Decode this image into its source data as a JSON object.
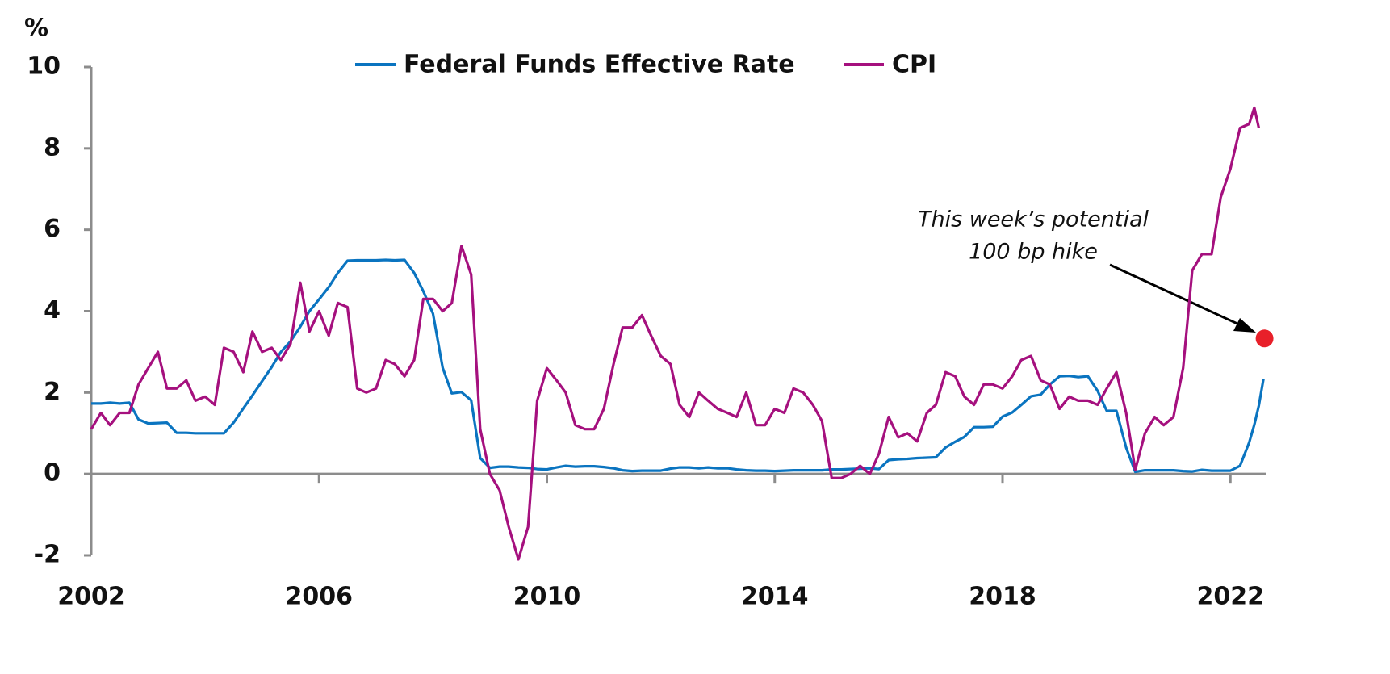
{
  "chart_data": {
    "type": "line",
    "y_label": "%",
    "x": [
      2002,
      2002.17,
      2002.33,
      2002.5,
      2002.67,
      2002.83,
      2003,
      2003.17,
      2003.33,
      2003.5,
      2003.67,
      2003.83,
      2004,
      2004.17,
      2004.33,
      2004.5,
      2004.67,
      2004.83,
      2005,
      2005.17,
      2005.33,
      2005.5,
      2005.67,
      2005.83,
      2006,
      2006.17,
      2006.33,
      2006.5,
      2006.67,
      2006.83,
      2007,
      2007.17,
      2007.33,
      2007.5,
      2007.67,
      2007.83,
      2008,
      2008.17,
      2008.33,
      2008.5,
      2008.67,
      2008.83,
      2009,
      2009.17,
      2009.33,
      2009.5,
      2009.67,
      2009.83,
      2010,
      2010.17,
      2010.33,
      2010.5,
      2010.67,
      2010.83,
      2011,
      2011.17,
      2011.33,
      2011.5,
      2011.67,
      2011.83,
      2012,
      2012.17,
      2012.33,
      2012.5,
      2012.67,
      2012.83,
      2013,
      2013.17,
      2013.33,
      2013.5,
      2013.67,
      2013.83,
      2014,
      2014.17,
      2014.33,
      2014.5,
      2014.67,
      2014.83,
      2015,
      2015.17,
      2015.33,
      2015.5,
      2015.67,
      2015.83,
      2016,
      2016.17,
      2016.33,
      2016.5,
      2016.67,
      2016.83,
      2017,
      2017.17,
      2017.33,
      2017.5,
      2017.67,
      2017.83,
      2018,
      2018.17,
      2018.33,
      2018.5,
      2018.67,
      2018.83,
      2019,
      2019.17,
      2019.33,
      2019.5,
      2019.67,
      2019.83,
      2020,
      2020.17,
      2020.33,
      2020.5,
      2020.67,
      2020.83,
      2021,
      2021.17,
      2021.33,
      2021.5,
      2021.67,
      2021.83,
      2022,
      2022.17,
      2022.33,
      2022.42,
      2022.5,
      2022.58
    ],
    "series": [
      {
        "name": "Federal Funds Effective Rate",
        "color": "#0a74c0",
        "values": [
          1.73,
          1.73,
          1.75,
          1.73,
          1.75,
          1.34,
          1.24,
          1.25,
          1.26,
          1.01,
          1.01,
          1.0,
          1.0,
          1.0,
          1.0,
          1.26,
          1.61,
          1.93,
          2.28,
          2.63,
          3.0,
          3.26,
          3.62,
          4.0,
          4.29,
          4.59,
          4.94,
          5.24,
          5.25,
          5.25,
          5.25,
          5.26,
          5.25,
          5.26,
          4.94,
          4.49,
          3.94,
          2.61,
          1.98,
          2.01,
          1.81,
          0.39,
          0.15,
          0.18,
          0.18,
          0.16,
          0.15,
          0.12,
          0.11,
          0.16,
          0.2,
          0.18,
          0.19,
          0.19,
          0.17,
          0.14,
          0.09,
          0.07,
          0.08,
          0.08,
          0.08,
          0.13,
          0.16,
          0.16,
          0.14,
          0.16,
          0.14,
          0.14,
          0.11,
          0.09,
          0.08,
          0.08,
          0.07,
          0.08,
          0.09,
          0.09,
          0.09,
          0.09,
          0.11,
          0.11,
          0.12,
          0.13,
          0.14,
          0.12,
          0.34,
          0.36,
          0.37,
          0.39,
          0.4,
          0.41,
          0.65,
          0.79,
          0.91,
          1.15,
          1.15,
          1.16,
          1.41,
          1.51,
          1.7,
          1.91,
          1.95,
          2.2,
          2.4,
          2.41,
          2.38,
          2.4,
          2.04,
          1.55,
          1.55,
          0.65,
          0.05,
          0.09,
          0.09,
          0.09,
          0.09,
          0.07,
          0.06,
          0.1,
          0.08,
          0.08,
          0.08,
          0.2,
          0.77,
          1.21,
          1.68,
          2.33
        ]
      },
      {
        "name": "CPI",
        "color": "#a5107e",
        "values": [
          1.1,
          1.5,
          1.2,
          1.5,
          1.5,
          2.2,
          2.6,
          3.0,
          2.1,
          2.1,
          2.3,
          1.8,
          1.9,
          1.7,
          3.1,
          3.0,
          2.5,
          3.5,
          3.0,
          3.1,
          2.8,
          3.2,
          4.7,
          3.5,
          4.0,
          3.4,
          4.2,
          4.1,
          2.1,
          2.0,
          2.1,
          2.8,
          2.7,
          2.4,
          2.8,
          4.3,
          4.3,
          4.0,
          4.2,
          5.6,
          4.9,
          1.1,
          0.0,
          -0.4,
          -1.3,
          -2.1,
          -1.3,
          1.8,
          2.6,
          2.3,
          2.0,
          1.2,
          1.1,
          1.1,
          1.6,
          2.7,
          3.6,
          3.6,
          3.9,
          3.4,
          2.9,
          2.7,
          1.7,
          1.4,
          2.0,
          1.8,
          1.6,
          1.5,
          1.4,
          2.0,
          1.2,
          1.2,
          1.6,
          1.5,
          2.1,
          2.0,
          1.7,
          1.3,
          -0.1,
          -0.1,
          0.0,
          0.2,
          0.0,
          0.5,
          1.4,
          0.9,
          1.0,
          0.8,
          1.5,
          1.7,
          2.5,
          2.4,
          1.9,
          1.7,
          2.2,
          2.2,
          2.1,
          2.4,
          2.8,
          2.9,
          2.3,
          2.2,
          1.6,
          1.9,
          1.8,
          1.8,
          1.7,
          2.1,
          2.5,
          1.5,
          0.1,
          1.0,
          1.4,
          1.2,
          1.4,
          2.6,
          5.0,
          5.4,
          5.4,
          6.8,
          7.5,
          8.5,
          8.6,
          9.0,
          8.5,
          null
        ]
      }
    ],
    "highlight": {
      "x": 2022.6,
      "y": 3.33,
      "color": "#e8202a"
    },
    "annotation": [
      "This week’s potential",
      "100 bp hike"
    ],
    "xlim": [
      2002,
      2022.62
    ],
    "xticks": [
      2002,
      2006,
      2010,
      2014,
      2018,
      2022
    ],
    "ylim": [
      -2,
      10
    ],
    "yticks": [
      -2,
      0,
      2,
      4,
      6,
      8,
      10
    ],
    "legend": "top",
    "grid": false
  }
}
